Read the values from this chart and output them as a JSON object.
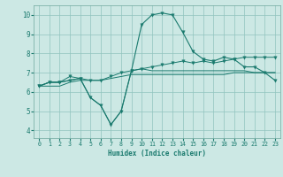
{
  "title": "",
  "xlabel": "Humidex (Indice chaleur)",
  "ylabel": "",
  "bg_color": "#cce8e4",
  "line_color": "#1a7a6e",
  "xlim": [
    -0.5,
    23.5
  ],
  "ylim": [
    3.6,
    10.5
  ],
  "xticks": [
    0,
    1,
    2,
    3,
    4,
    5,
    6,
    7,
    8,
    9,
    10,
    11,
    12,
    13,
    14,
    15,
    16,
    17,
    18,
    19,
    20,
    21,
    22,
    23
  ],
  "yticks": [
    4,
    5,
    6,
    7,
    8,
    9,
    10
  ],
  "series1_x": [
    0,
    1,
    2,
    3,
    4,
    5,
    6,
    7,
    8,
    9,
    10,
    11,
    12,
    13,
    14,
    15,
    16,
    17,
    18,
    19,
    20,
    21,
    22,
    23
  ],
  "series1_y": [
    6.3,
    6.5,
    6.5,
    6.6,
    6.7,
    5.7,
    5.3,
    4.3,
    5.0,
    7.1,
    7.2,
    7.1,
    7.1,
    7.1,
    7.1,
    7.1,
    7.1,
    7.1,
    7.1,
    7.1,
    7.1,
    7.0,
    7.0,
    7.0
  ],
  "series2_x": [
    0,
    1,
    2,
    3,
    4,
    5,
    6,
    7,
    8,
    9,
    10,
    11,
    12,
    13,
    14,
    15,
    16,
    17,
    18,
    19,
    20,
    21,
    22,
    23
  ],
  "series2_y": [
    6.3,
    6.5,
    6.5,
    6.6,
    6.7,
    5.7,
    5.3,
    4.3,
    5.0,
    7.1,
    9.5,
    10.0,
    10.1,
    10.0,
    9.1,
    8.1,
    7.7,
    7.6,
    7.8,
    7.7,
    7.3,
    7.3,
    7.0,
    6.6
  ],
  "series3_x": [
    0,
    1,
    2,
    3,
    4,
    5,
    6,
    7,
    8,
    9,
    10,
    11,
    12,
    13,
    14,
    15,
    16,
    17,
    18,
    19,
    20,
    21,
    22,
    23
  ],
  "series3_y": [
    6.3,
    6.5,
    6.5,
    6.8,
    6.7,
    6.6,
    6.6,
    6.8,
    7.0,
    7.1,
    7.2,
    7.3,
    7.4,
    7.5,
    7.6,
    7.5,
    7.6,
    7.5,
    7.6,
    7.7,
    7.8,
    7.8,
    7.8,
    7.8
  ],
  "series4_x": [
    0,
    1,
    2,
    3,
    4,
    5,
    6,
    7,
    8,
    9,
    10,
    11,
    12,
    13,
    14,
    15,
    16,
    17,
    18,
    19,
    20,
    21,
    22,
    23
  ],
  "series4_y": [
    6.3,
    6.3,
    6.3,
    6.5,
    6.6,
    6.6,
    6.6,
    6.7,
    6.8,
    6.9,
    6.9,
    6.9,
    6.9,
    6.9,
    6.9,
    6.9,
    6.9,
    6.9,
    6.9,
    7.0,
    7.0,
    7.0,
    7.0,
    7.0
  ]
}
